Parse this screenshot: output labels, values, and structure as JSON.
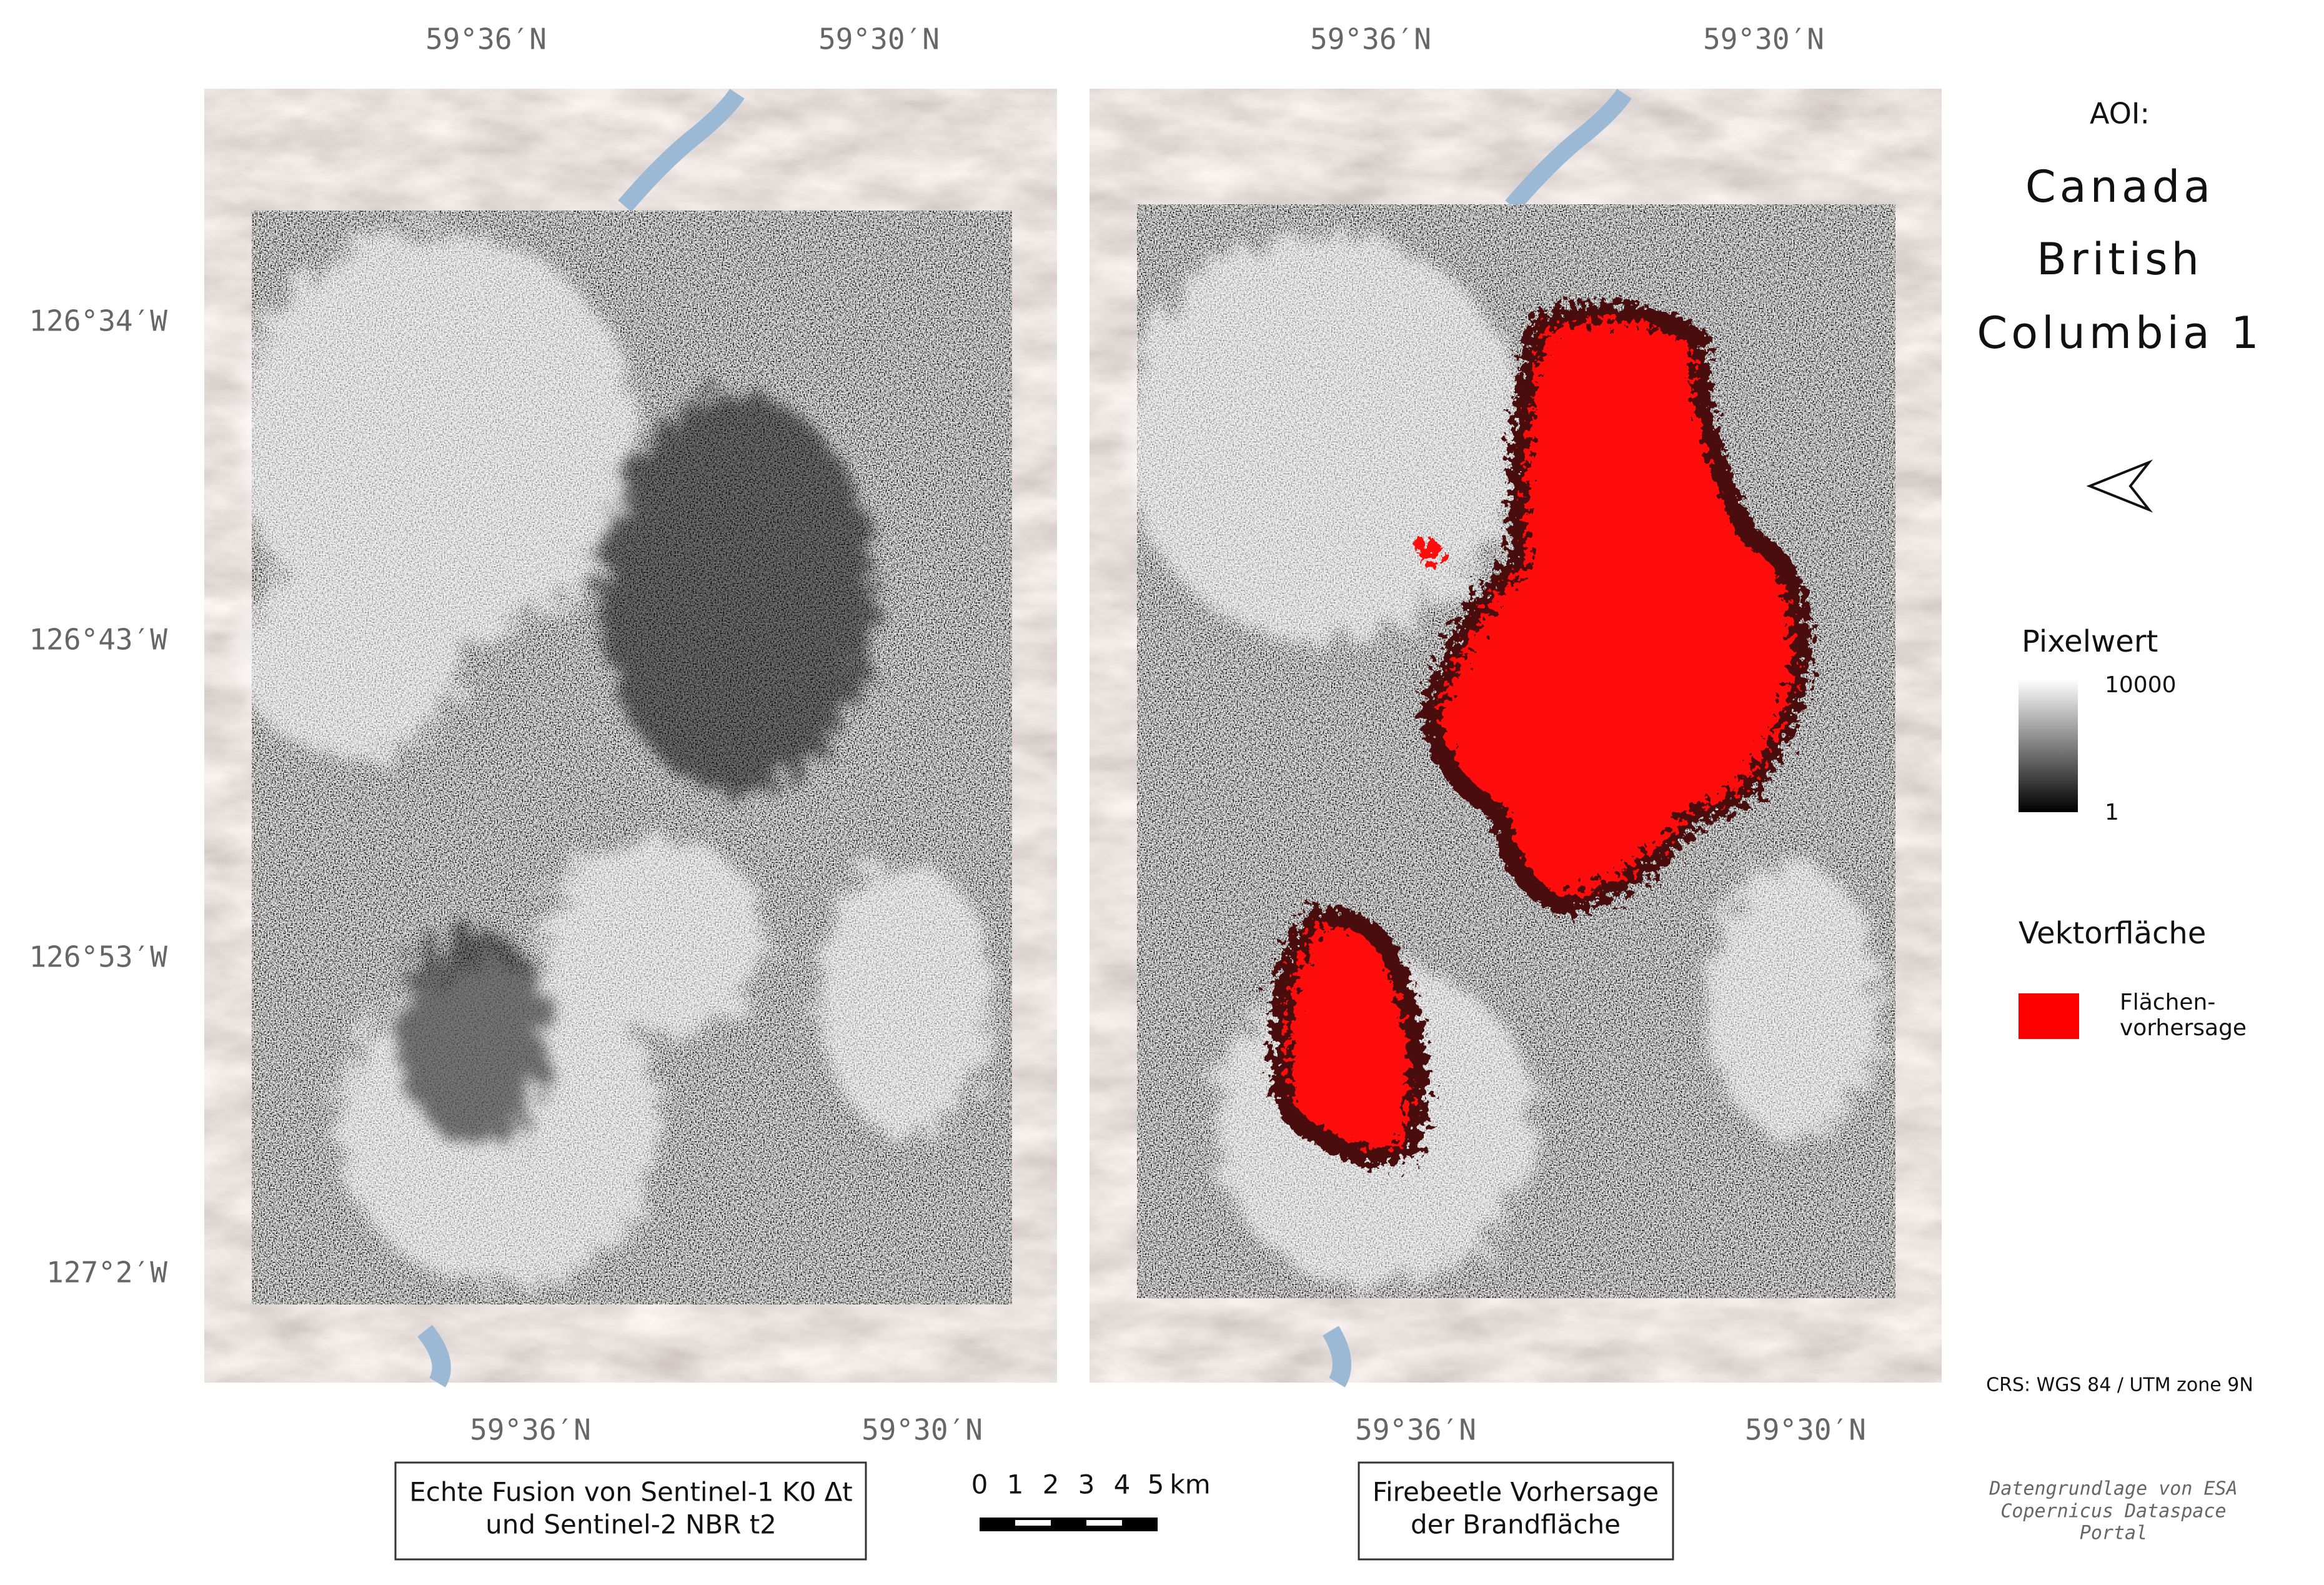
{
  "map_panels": [
    {
      "top_labels": [
        "59°36′N",
        "59°30′N"
      ],
      "bottom_labels": [
        "59°36′N",
        "59°30′N"
      ],
      "caption": [
        "Echte Fusion von Sentinel-1 K0 Δt",
        "und Sentinel-2 NBR t2"
      ]
    },
    {
      "top_labels": [
        "59°36′N",
        "59°30′N"
      ],
      "bottom_labels": [
        "59°36′N",
        "59°30′N"
      ],
      "caption": [
        "Firebeetle Vorhersage",
        "der Brandfläche"
      ]
    }
  ],
  "left_labels": [
    "126°34′W",
    "126°43′W",
    "126°53′W",
    "127°2′W"
  ],
  "legend": {
    "aoi_label": "AOI:",
    "aoi_name": [
      "Canada",
      "British",
      "Columbia 1"
    ],
    "pixel_title": "Pixelwert",
    "pixel_max": 10000,
    "pixel_min": 1,
    "vector_title": "Vektorfläche",
    "vector_item": [
      "Flächen-",
      "vorhersage"
    ]
  },
  "crs": "CRS: WGS 84 / UTM zone 9N",
  "scale_bar": {
    "labels": [
      "0",
      "1",
      "2",
      "3",
      "4",
      "5",
      "km"
    ]
  },
  "attribution": [
    "Datengrundlage von ESA",
    "Copernicus Dataspace",
    "Portal"
  ]
}
